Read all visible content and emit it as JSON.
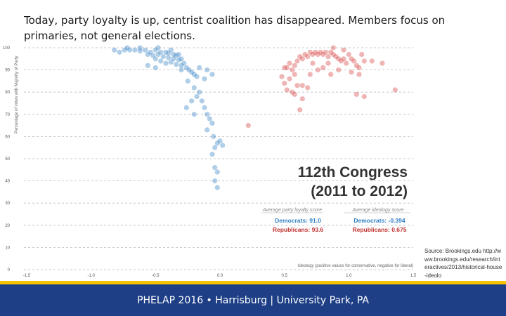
{
  "slide": {
    "title": "Today, party loyalty is up, centrist coalition has disappeared.  Members focus on primaries, not general elections.",
    "source": "Source: Brookings.edu http://www.brookings.edu/research/interactives/2013/historical-house-ideolo",
    "footer": "PHELAP 2016 • Harrisburg | University Park, PA"
  },
  "colors": {
    "democrat": "#2f7fc3",
    "republican": "#d63a3a",
    "grid": "#bbbbbb",
    "footer_bg": "#1e3f86",
    "footer_stripe": "#f5c400"
  },
  "chart_data": {
    "type": "scatter",
    "ylabel": "Percentage of votes with Majority of Party",
    "xlabel": "Ideology (positive values for conservative, negative for liberal)",
    "xlim": [
      -1.5,
      1.5
    ],
    "ylim": [
      0,
      100
    ],
    "x_tick_labels": [
      "-1.5",
      "-1.0",
      "-0.5",
      "0.0",
      "0.5",
      "1.0",
      "1.5"
    ],
    "y_ticks": [
      0,
      10,
      20,
      30,
      40,
      50,
      60,
      70,
      80,
      90,
      100
    ],
    "grid": "horizontal",
    "annotation": {
      "heading1": "112th Congress",
      "heading2": "(2011 to 2012)",
      "loyalty_header": "Average party loyalty score",
      "ideology_header": "Average ideology score",
      "dem_loyalty": "Democrats: 91.0",
      "dem_ideology": "Democrats: -0.394",
      "rep_loyalty": "Republicans: 93.6",
      "rep_ideology": "Republicans: 0.675"
    },
    "series": [
      {
        "name": "Democrats",
        "points": [
          [
            -0.82,
            99
          ],
          [
            -0.78,
            98
          ],
          [
            -0.74,
            99
          ],
          [
            -0.7,
            99
          ],
          [
            -0.66,
            99
          ],
          [
            -0.62,
            98.5
          ],
          [
            -0.58,
            99
          ],
          [
            -0.54,
            98
          ],
          [
            -0.5,
            99
          ],
          [
            -0.46,
            98
          ],
          [
            -0.42,
            98
          ],
          [
            -0.4,
            97.5
          ],
          [
            -0.38,
            99
          ],
          [
            -0.36,
            97
          ],
          [
            -0.34,
            96.5
          ],
          [
            -0.32,
            97
          ],
          [
            -0.56,
            97
          ],
          [
            -0.52,
            96.5
          ],
          [
            -0.48,
            97
          ],
          [
            -0.44,
            96
          ],
          [
            -0.4,
            95.5
          ],
          [
            -0.36,
            95
          ],
          [
            -0.32,
            94.5
          ],
          [
            -0.3,
            95
          ],
          [
            -0.46,
            94
          ],
          [
            -0.42,
            93
          ],
          [
            -0.38,
            93.5
          ],
          [
            -0.34,
            92.5
          ],
          [
            -0.3,
            92
          ],
          [
            -0.28,
            93
          ],
          [
            -0.26,
            91
          ],
          [
            -0.24,
            90
          ],
          [
            -0.22,
            89
          ],
          [
            -0.2,
            88
          ],
          [
            -0.18,
            87
          ],
          [
            -0.25,
            85
          ],
          [
            -0.2,
            82
          ],
          [
            -0.16,
            80
          ],
          [
            -0.18,
            78
          ],
          [
            -0.14,
            76
          ],
          [
            -0.22,
            76
          ],
          [
            -0.12,
            73
          ],
          [
            -0.1,
            70
          ],
          [
            -0.08,
            68
          ],
          [
            -0.06,
            66
          ],
          [
            -0.1,
            63
          ],
          [
            -0.05,
            60
          ],
          [
            -0.02,
            57
          ],
          [
            -0.04,
            55
          ],
          [
            0.0,
            58
          ],
          [
            -0.06,
            52
          ],
          [
            0.02,
            56
          ],
          [
            -0.04,
            46
          ],
          [
            -0.1,
            90
          ],
          [
            -0.06,
            88
          ],
          [
            -0.5,
            95
          ],
          [
            -0.56,
            92
          ],
          [
            -0.72,
            100
          ],
          [
            -0.62,
            100
          ],
          [
            -0.48,
            100
          ],
          [
            -0.5,
            91
          ],
          [
            -0.3,
            90
          ],
          [
            -0.16,
            91
          ],
          [
            -0.12,
            86
          ],
          [
            -0.26,
            73
          ],
          [
            -0.2,
            70
          ],
          [
            -0.02,
            44
          ],
          [
            -0.04,
            40
          ],
          [
            -0.02,
            37
          ]
        ]
      },
      {
        "name": "Republicans",
        "points": [
          [
            0.22,
            65
          ],
          [
            0.48,
            87
          ],
          [
            0.52,
            91
          ],
          [
            0.5,
            84
          ],
          [
            0.54,
            86
          ],
          [
            0.56,
            90
          ],
          [
            0.58,
            92
          ],
          [
            0.6,
            94
          ],
          [
            0.62,
            96
          ],
          [
            0.64,
            95
          ],
          [
            0.66,
            97
          ],
          [
            0.68,
            96
          ],
          [
            0.7,
            98
          ],
          [
            0.72,
            97
          ],
          [
            0.74,
            98
          ],
          [
            0.76,
            97
          ],
          [
            0.78,
            98
          ],
          [
            0.8,
            97
          ],
          [
            0.82,
            98
          ],
          [
            0.84,
            96
          ],
          [
            0.86,
            98
          ],
          [
            0.88,
            97
          ],
          [
            0.9,
            96
          ],
          [
            0.92,
            95
          ],
          [
            0.94,
            94
          ],
          [
            0.96,
            95
          ],
          [
            0.98,
            93
          ],
          [
            1.0,
            97
          ],
          [
            1.02,
            95
          ],
          [
            1.04,
            94
          ],
          [
            1.06,
            92
          ],
          [
            1.08,
            91
          ],
          [
            1.1,
            97
          ],
          [
            1.12,
            94
          ],
          [
            1.18,
            94
          ],
          [
            1.26,
            93
          ],
          [
            1.36,
            81
          ],
          [
            0.5,
            91
          ],
          [
            0.52,
            81
          ],
          [
            0.56,
            80
          ],
          [
            0.58,
            79
          ],
          [
            0.6,
            83
          ],
          [
            0.64,
            83
          ],
          [
            0.68,
            82
          ],
          [
            0.64,
            77
          ],
          [
            0.62,
            72
          ],
          [
            0.8,
            91
          ],
          [
            0.86,
            88
          ],
          [
            0.92,
            90
          ],
          [
            1.02,
            89
          ],
          [
            1.08,
            88
          ],
          [
            1.06,
            79
          ],
          [
            0.72,
            93
          ],
          [
            0.84,
            93
          ],
          [
            0.76,
            90
          ],
          [
            0.7,
            88
          ],
          [
            0.54,
            93
          ],
          [
            0.58,
            88
          ],
          [
            0.96,
            99
          ],
          [
            0.88,
            100
          ],
          [
            1.12,
            78
          ]
        ]
      }
    ]
  }
}
